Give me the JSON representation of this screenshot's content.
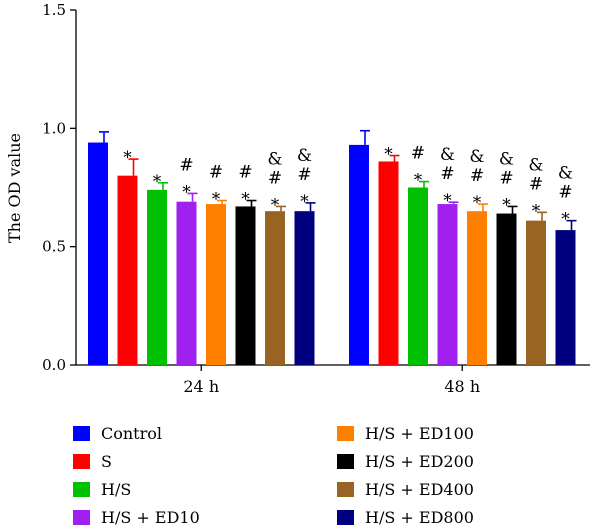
{
  "chart_data": {
    "type": "bar",
    "title": "",
    "xlabel": "",
    "ylabel": "The OD value",
    "ylim": [
      0,
      1.5
    ],
    "yticks": [
      "0.0",
      "0.5",
      "1.0",
      "1.5"
    ],
    "categories": [
      "24 h",
      "48 h"
    ],
    "grid": false,
    "legend_position": "bottom",
    "series": [
      {
        "name": "Control",
        "color": "#0000ff",
        "values": [
          0.94,
          0.93
        ],
        "errors": [
          0.045,
          0.06
        ],
        "marks": [
          [],
          []
        ]
      },
      {
        "name": "S",
        "color": "#ff0000",
        "values": [
          0.8,
          0.86
        ],
        "errors": [
          0.07,
          0.025
        ],
        "marks": [
          [
            "*"
          ],
          [
            "*"
          ]
        ]
      },
      {
        "name": "H/S",
        "color": "#00c000",
        "values": [
          0.74,
          0.75
        ],
        "errors": [
          0.03,
          0.025
        ],
        "marks": [
          [
            "*"
          ],
          [
            "*",
            "#"
          ]
        ]
      },
      {
        "name": "H/S + ED10",
        "color": "#a020f0",
        "values": [
          0.69,
          0.68
        ],
        "errors": [
          0.035,
          0.008
        ],
        "marks": [
          [
            "*",
            "#"
          ],
          [
            "*",
            "#",
            "&"
          ]
        ]
      },
      {
        "name": "H/S + ED100",
        "color": "#ff8000",
        "values": [
          0.68,
          0.65
        ],
        "errors": [
          0.015,
          0.03
        ],
        "marks": [
          [
            "*",
            "#"
          ],
          [
            "*",
            "#",
            "&"
          ]
        ]
      },
      {
        "name": "H/S + ED200",
        "color": "#000000",
        "values": [
          0.67,
          0.64
        ],
        "errors": [
          0.025,
          0.03
        ],
        "marks": [
          [
            "*",
            "#"
          ],
          [
            "*",
            "#",
            "&"
          ]
        ]
      },
      {
        "name": "H/S + ED400",
        "color": "#996322",
        "values": [
          0.65,
          0.61
        ],
        "errors": [
          0.02,
          0.035
        ],
        "marks": [
          [
            "*",
            "#",
            "&"
          ],
          [
            "*",
            "#",
            "&"
          ]
        ]
      },
      {
        "name": "H/S + ED800",
        "color": "#00007f",
        "values": [
          0.65,
          0.57
        ],
        "errors": [
          0.035,
          0.04
        ],
        "marks": [
          [
            "*",
            "#",
            "&"
          ],
          [
            "*",
            "#",
            "&"
          ]
        ]
      }
    ]
  }
}
